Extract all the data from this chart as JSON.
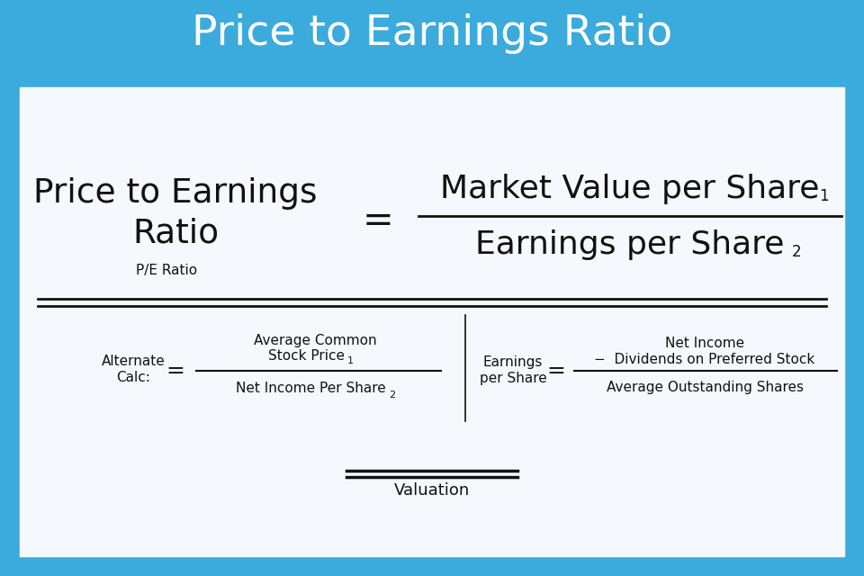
{
  "title": "Price to Earnings Ratio",
  "title_bg_color": "#3aabdc",
  "title_font_color": "#ffffff",
  "title_fontsize": 34,
  "bg_color": "#3aabdc",
  "content_bg": "#f5f8fc",
  "text_color": "#111111",
  "font_family": "DejaVu Sans",
  "main_label_line1": "Price to Earnings",
  "main_label_line2": "Ratio",
  "main_label_sub": "P/E Ratio",
  "equals_sign": "=",
  "numerator": "Market Value per Share",
  "numerator_sub": "1",
  "denominator": "Earnings per Share",
  "denominator_sub": "2",
  "alt_label_line1": "Alternate",
  "alt_label_line2": "Calc:",
  "alt_equals": "=",
  "alt_numerator_line1": "Average Common",
  "alt_numerator_line2": "Stock Price",
  "alt_numerator_sub": "1",
  "alt_denominator": "Net Income Per Share",
  "alt_denominator_sub": "2",
  "eps_label_line1": "Earnings",
  "eps_label_line2": "per Share",
  "eps_equals": "=",
  "eps_num_line1": "Net Income",
  "eps_num_line2": "−  Dividends on Preferred Stock",
  "eps_denominator": "Average Outstanding Shares",
  "category_label": "Valuation"
}
